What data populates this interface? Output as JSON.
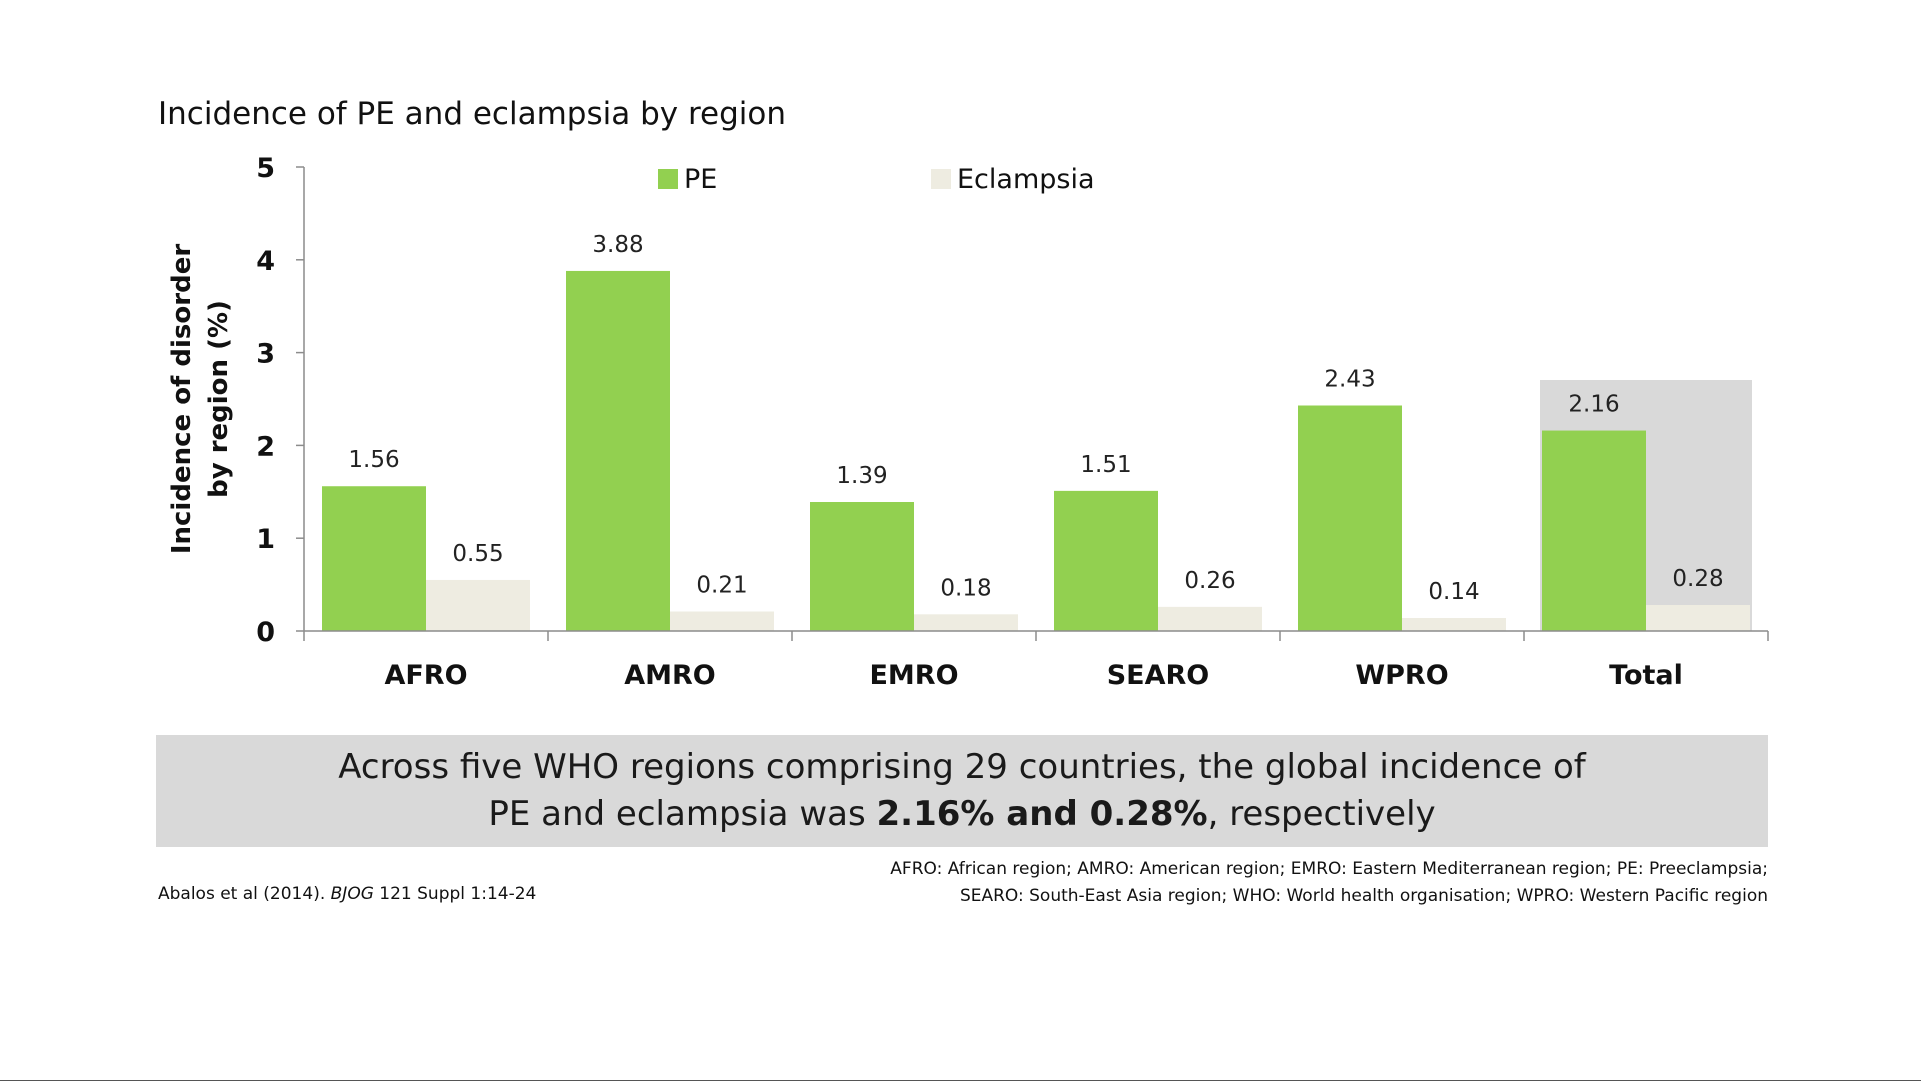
{
  "chart_data": {
    "type": "bar",
    "title": "Incidence of PE and eclampsia by region",
    "ylabel_lines": [
      "Incidence of disorder",
      "by region (%)"
    ],
    "ylim": [
      0,
      5
    ],
    "yticks": [
      "0",
      "1",
      "2",
      "3",
      "4",
      "5"
    ],
    "categories": [
      "AFRO",
      "AMRO",
      "EMRO",
      "SEARO",
      "WPRO",
      "Total"
    ],
    "series": [
      {
        "name": "PE",
        "color": "#92d050",
        "values": [
          1.56,
          3.88,
          1.39,
          1.51,
          2.43,
          2.16
        ],
        "labels": [
          "1.56",
          "3.88",
          "1.39",
          "1.51",
          "2.43",
          "2.16"
        ]
      },
      {
        "name": "Eclampsia",
        "color": "#eeece1",
        "values": [
          0.55,
          0.21,
          0.18,
          0.26,
          0.14,
          0.28
        ],
        "labels": [
          "0.55",
          "0.21",
          "0.18",
          "0.26",
          "0.14",
          "0.28"
        ]
      }
    ],
    "highlight_category": "Total",
    "highlight_color": "#d9d9d9",
    "legend_position": "top",
    "grid": false
  },
  "summary": {
    "line1": "Across five WHO regions comprising 29 countries, the global incidence of",
    "line2_pre": "PE and eclampsia was ",
    "line2_bold": "2.16% and 0.28%",
    "line2_post": ", respectively"
  },
  "citation": {
    "authors": "Abalos et al (2014). ",
    "journal": "BJOG",
    "rest": " 121 Suppl 1:14-24"
  },
  "abbreviations": {
    "line1": "AFRO: African region; AMRO: American region; EMRO: Eastern Mediterranean region; PE: Preeclampsia;",
    "line2": "SEARO: South-East Asia region; WHO: World health organisation; WPRO: Western Pacific region"
  }
}
